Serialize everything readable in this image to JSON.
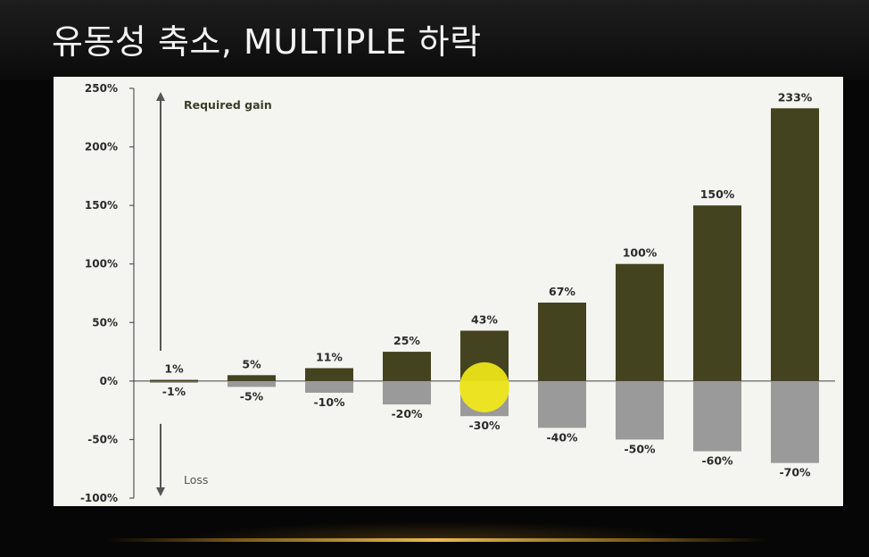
{
  "slide": {
    "title": "유동성 축소, MULTIPLE 하락"
  },
  "colors": {
    "gain_bar": "#44431f",
    "loss_bar": "#9a9a9a",
    "highlight": "#f5ec16",
    "accent_line": "#e9b957"
  },
  "chart_data": {
    "type": "bar",
    "categories": [
      "-1%",
      "-5%",
      "-10%",
      "-20%",
      "-30%",
      "-40%",
      "-50%",
      "-60%",
      "-70%"
    ],
    "series": [
      {
        "name": "Required gain",
        "values": [
          1,
          5,
          11,
          25,
          43,
          67,
          100,
          150,
          233
        ]
      },
      {
        "name": "Loss",
        "values": [
          -1,
          -5,
          -10,
          -20,
          -30,
          -40,
          -50,
          -60,
          -70
        ]
      }
    ],
    "gain_labels": [
      "1%",
      "5%",
      "11%",
      "25%",
      "43%",
      "67%",
      "100%",
      "150%",
      "233%"
    ],
    "loss_labels": [
      "-1%",
      "-5%",
      "-10%",
      "-20%",
      "-30%",
      "-40%",
      "-50%",
      "-60%",
      "-70%"
    ],
    "y_ticks": [
      250,
      200,
      150,
      100,
      50,
      0,
      -50,
      -100
    ],
    "y_tick_labels": [
      "250%",
      "200%",
      "150%",
      "100%",
      "50%",
      "0%",
      "-50%",
      "-100%"
    ],
    "ylim": [
      -100,
      250
    ],
    "annotations": {
      "up_arrow_label": "Required gain",
      "down_arrow_label": "Loss"
    },
    "highlight_marker_category": "-30%",
    "grid": false
  }
}
